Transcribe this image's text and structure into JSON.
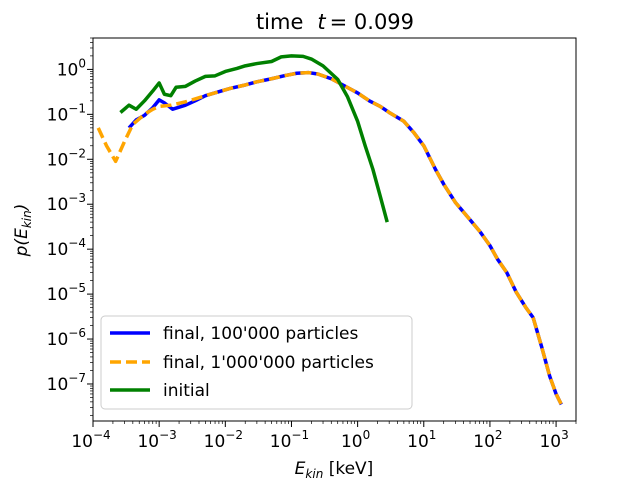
{
  "chart_data": {
    "type": "line",
    "title": "time   t = 0.099",
    "title_prefix": "time",
    "title_var": "t",
    "title_value": "= 0.099",
    "xlabel": "E_kin [keV]",
    "xlabel_parts": {
      "main": "E",
      "sub": "kin",
      "rest": " [keV]"
    },
    "ylabel": "p(E_kin)",
    "ylabel_parts": {
      "pre": "p(",
      "main": "E",
      "sub": "kin",
      "post": ")"
    },
    "xscale": "log",
    "yscale": "log",
    "xlim": [
      0.0001,
      2000
    ],
    "ylim": [
      1.5e-08,
      5
    ],
    "x_ticks": [
      {
        "exp": -4,
        "base": "10",
        "sup": "−4"
      },
      {
        "exp": -3,
        "base": "10",
        "sup": "−3"
      },
      {
        "exp": -2,
        "base": "10",
        "sup": "−2"
      },
      {
        "exp": -1,
        "base": "10",
        "sup": "−1"
      },
      {
        "exp": 0,
        "base": "10",
        "sup": "0"
      },
      {
        "exp": 1,
        "base": "10",
        "sup": "1"
      },
      {
        "exp": 2,
        "base": "10",
        "sup": "2"
      },
      {
        "exp": 3,
        "base": "10",
        "sup": "3"
      }
    ],
    "y_ticks": [
      {
        "exp": 0,
        "base": "10",
        "sup": "0"
      },
      {
        "exp": -1,
        "base": "10",
        "sup": "−1"
      },
      {
        "exp": -2,
        "base": "10",
        "sup": "−2"
      },
      {
        "exp": -3,
        "base": "10",
        "sup": "−3"
      },
      {
        "exp": -4,
        "base": "10",
        "sup": "−4"
      },
      {
        "exp": -5,
        "base": "10",
        "sup": "−5"
      },
      {
        "exp": -6,
        "base": "10",
        "sup": "−6"
      },
      {
        "exp": -7,
        "base": "10",
        "sup": "−7"
      }
    ],
    "legend_position": "lower-left",
    "series": [
      {
        "name": "final, 100'000 particles",
        "color": "#0000ff",
        "style": "solid",
        "points": [
          [
            0.00035,
            0.05
          ],
          [
            0.00045,
            0.075
          ],
          [
            0.0006,
            0.095
          ],
          [
            0.0008,
            0.14
          ],
          [
            0.001,
            0.21
          ],
          [
            0.0012,
            0.18
          ],
          [
            0.0016,
            0.13
          ],
          [
            0.0025,
            0.16
          ],
          [
            0.0035,
            0.2
          ],
          [
            0.005,
            0.26
          ],
          [
            0.008,
            0.32
          ],
          [
            0.012,
            0.38
          ],
          [
            0.02,
            0.45
          ],
          [
            0.03,
            0.53
          ],
          [
            0.05,
            0.62
          ],
          [
            0.08,
            0.73
          ],
          [
            0.12,
            0.82
          ],
          [
            0.18,
            0.85
          ],
          [
            0.25,
            0.79
          ],
          [
            0.4,
            0.62
          ],
          [
            0.6,
            0.45
          ],
          [
            1.0,
            0.3
          ],
          [
            1.5,
            0.2
          ],
          [
            2.2,
            0.15
          ],
          [
            3.0,
            0.11
          ],
          [
            5.0,
            0.07
          ],
          [
            7.0,
            0.04
          ],
          [
            10,
            0.02
          ],
          [
            15,
            0.006
          ],
          [
            20,
            0.0028
          ],
          [
            30,
            0.0011
          ],
          [
            50,
            0.00045
          ],
          [
            70,
            0.00025
          ],
          [
            100,
            0.00012
          ],
          [
            130,
            6e-05
          ],
          [
            180,
            3e-05
          ],
          [
            250,
            1.1e-05
          ],
          [
            350,
            5e-06
          ],
          [
            450,
            3e-06
          ],
          [
            600,
            7e-07
          ],
          [
            800,
            1.5e-07
          ],
          [
            1000,
            6e-08
          ],
          [
            1200,
            3.5e-08
          ]
        ]
      },
      {
        "name": "final, 1'000'000 particles",
        "color": "#ffa500",
        "style": "dashed",
        "points": [
          [
            0.00012,
            0.05
          ],
          [
            0.00016,
            0.02
          ],
          [
            0.00022,
            0.009
          ],
          [
            0.0003,
            0.025
          ],
          [
            0.0004,
            0.06
          ],
          [
            0.0006,
            0.1
          ],
          [
            0.0008,
            0.13
          ],
          [
            0.001,
            0.15
          ],
          [
            0.0015,
            0.16
          ],
          [
            0.0025,
            0.19
          ],
          [
            0.0035,
            0.22
          ],
          [
            0.005,
            0.26
          ],
          [
            0.008,
            0.32
          ],
          [
            0.012,
            0.38
          ],
          [
            0.02,
            0.45
          ],
          [
            0.03,
            0.53
          ],
          [
            0.05,
            0.62
          ],
          [
            0.08,
            0.73
          ],
          [
            0.12,
            0.82
          ],
          [
            0.18,
            0.85
          ],
          [
            0.25,
            0.79
          ],
          [
            0.4,
            0.62
          ],
          [
            0.6,
            0.45
          ],
          [
            1.0,
            0.3
          ],
          [
            1.5,
            0.2
          ],
          [
            2.2,
            0.15
          ],
          [
            3.0,
            0.11
          ],
          [
            5.0,
            0.07
          ],
          [
            7.0,
            0.04
          ],
          [
            10,
            0.02
          ],
          [
            15,
            0.006
          ],
          [
            20,
            0.0028
          ],
          [
            30,
            0.0011
          ],
          [
            50,
            0.00045
          ],
          [
            70,
            0.00025
          ],
          [
            100,
            0.00012
          ],
          [
            130,
            6e-05
          ],
          [
            180,
            3e-05
          ],
          [
            250,
            1.1e-05
          ],
          [
            350,
            5e-06
          ],
          [
            450,
            3e-06
          ],
          [
            600,
            7e-07
          ],
          [
            800,
            1.5e-07
          ],
          [
            1000,
            6e-08
          ],
          [
            1200,
            3.5e-08
          ]
        ]
      },
      {
        "name": "initial",
        "color": "#008000",
        "style": "solid",
        "points": [
          [
            0.00026,
            0.11
          ],
          [
            0.00035,
            0.16
          ],
          [
            0.00045,
            0.13
          ],
          [
            0.0006,
            0.2
          ],
          [
            0.0008,
            0.33
          ],
          [
            0.001,
            0.5
          ],
          [
            0.0012,
            0.28
          ],
          [
            0.0015,
            0.26
          ],
          [
            0.0018,
            0.4
          ],
          [
            0.0025,
            0.42
          ],
          [
            0.0035,
            0.55
          ],
          [
            0.005,
            0.7
          ],
          [
            0.007,
            0.72
          ],
          [
            0.01,
            0.9
          ],
          [
            0.015,
            1.05
          ],
          [
            0.02,
            1.2
          ],
          [
            0.03,
            1.35
          ],
          [
            0.05,
            1.5
          ],
          [
            0.07,
            1.9
          ],
          [
            0.1,
            2.0
          ],
          [
            0.15,
            1.95
          ],
          [
            0.2,
            1.7
          ],
          [
            0.3,
            1.2
          ],
          [
            0.5,
            0.6
          ],
          [
            0.7,
            0.25
          ],
          [
            1.0,
            0.07
          ],
          [
            1.3,
            0.02
          ],
          [
            1.7,
            0.006
          ],
          [
            2.2,
            0.0015
          ],
          [
            2.8,
            0.0004
          ]
        ]
      }
    ]
  }
}
